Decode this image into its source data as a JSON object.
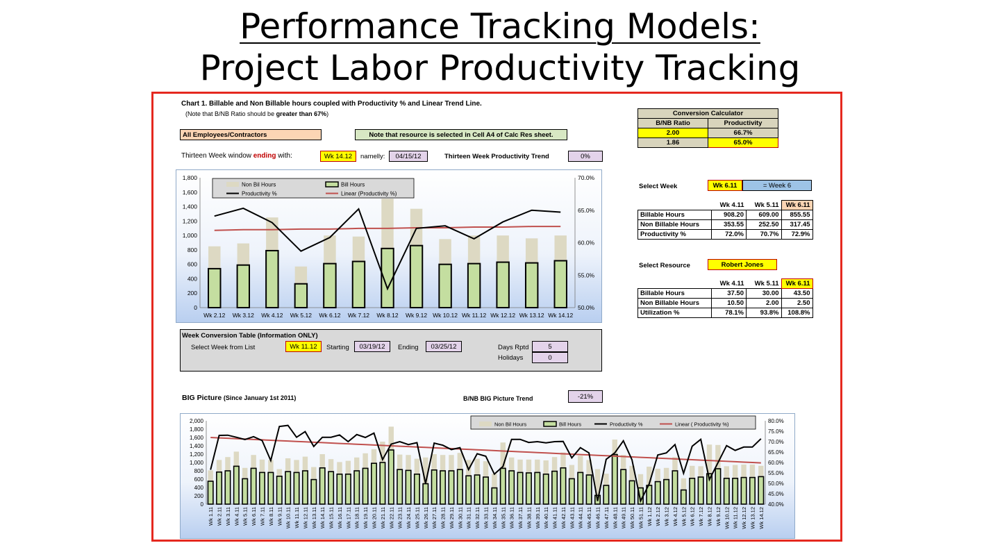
{
  "slide": {
    "title_line1": "Performance Tracking Models:",
    "title_line2": "Project Labor Productivity Tracking"
  },
  "sheet": {
    "chart1_title": "Chart 1.  Billable and Non Billable hours coupled with Productivity % and Linear Trend Line.",
    "chart1_note_prefix": "(Note that B/NB Ratio should be ",
    "chart1_note_bold": "greater than 67%",
    "chart1_note_suffix": ")",
    "employees_box": "All Employees/Contractors",
    "resource_note": "Note that resource is selected in Cell A4 of Calc Res sheet.",
    "window_label_prefix": "Thirteen Week window ",
    "window_label_red": "ending",
    "window_label_suffix": " with:",
    "window_week": "Wk 14.12",
    "namely_label": "namelly:",
    "namely_date": "04/15/12",
    "trend_label": "Thirteen Week Productivity Trend",
    "trend_value": "0%",
    "conversion": {
      "title": "Conversion Calculator",
      "col1": "B/NB Ratio",
      "col2": "Productivity",
      "row1": [
        "2.00",
        "66.7%"
      ],
      "row2": [
        "1.86",
        "65.0%"
      ]
    },
    "select_week": {
      "label": "Select Week",
      "value": "Wk 6.11",
      "equals": "=  Week 6",
      "headers": [
        "Wk 4.11",
        "Wk 5.11",
        "Wk 6.11"
      ],
      "rows": [
        {
          "label": "Billable Hours",
          "values": [
            "908.20",
            "609.00",
            "855.55"
          ]
        },
        {
          "label": "Non Billable Hours",
          "values": [
            "353.55",
            "252.50",
            "317.45"
          ]
        },
        {
          "label": "Productivity %",
          "values": [
            "72.0%",
            "70.7%",
            "72.9%"
          ]
        }
      ]
    },
    "select_resource": {
      "label": "Select Resource",
      "value": "Robert Jones",
      "headers": [
        "Wk 4.11",
        "Wk 5.11",
        "Wk 6.11"
      ],
      "rows": [
        {
          "label": "Billable Hours",
          "values": [
            "37.50",
            "30.00",
            "43.50"
          ]
        },
        {
          "label": "Non Billable Hours",
          "values": [
            "10.50",
            "2.00",
            "2.50"
          ]
        },
        {
          "label": "Utilization %",
          "values": [
            "78.1%",
            "93.8%",
            "108.8%"
          ]
        }
      ]
    },
    "week_conversion": {
      "title": "Week Conversion Table (Information ONLY)",
      "select_label": "Select Week from List",
      "select_value": "Wk 11.12",
      "starting_label": "Starting",
      "starting_value": "03/19/12",
      "ending_label": "Ending",
      "ending_value": "03/25/12",
      "days_label": "Days Rptd",
      "days_value": "5",
      "holidays_label": "Holidays",
      "holidays_value": "0"
    },
    "big_picture": {
      "title": "BIG Picture",
      "subtitle": "(Since January 1st 2011)",
      "trend_label": "B/NB BIG Picture  Trend",
      "trend_value": "-21%"
    }
  },
  "colors": {
    "bill_fill": "#c4dea0",
    "nonbill_fill": "#ddd9c3",
    "productivity_line": "#000000",
    "trend_line": "#c0504d",
    "frame_border": "#e5281f"
  },
  "chart_data": [
    {
      "type": "bar",
      "stacked": true,
      "categories": [
        "Wk 2.12",
        "Wk 3.12",
        "Wk 4.12",
        "Wk 5.12",
        "Wk 6.12",
        "Wk 7.12",
        "Wk 8.12",
        "Wk 9.12",
        "Wk 10.12",
        "Wk 11.12",
        "Wk 12.12",
        "Wk 13.12",
        "Wk 14.12"
      ],
      "series": [
        {
          "name": "Non Bil Hours",
          "values": [
            310,
            300,
            460,
            240,
            390,
            345,
            690,
            510,
            350,
            390,
            370,
            340,
            350
          ]
        },
        {
          "name": "Bill Hours",
          "values": [
            540,
            590,
            790,
            330,
            610,
            640,
            820,
            860,
            600,
            610,
            630,
            620,
            650
          ]
        },
        {
          "name": "Productivity %",
          "axis": "right",
          "type": "line",
          "values": [
            64.1,
            65.3,
            63.1,
            58.7,
            60.8,
            65.2,
            52.9,
            62.2,
            62.6,
            60.6,
            63.2,
            65.0,
            64.7
          ]
        },
        {
          "name": "Linear (Productivity %)",
          "axis": "right",
          "type": "line",
          "values": [
            61.9,
            62.0,
            62.0,
            62.1,
            62.1,
            62.2,
            62.2,
            62.3,
            62.3,
            62.4,
            62.4,
            62.5,
            62.5
          ]
        }
      ],
      "ylim": [
        0,
        1800
      ],
      "yticks": [
        "0",
        "200",
        "400",
        "600",
        "800",
        "1,000",
        "1,200",
        "1,400",
        "1,600",
        "1,800"
      ],
      "y2lim": [
        50,
        70
      ],
      "y2ticks": [
        "50.0%",
        "55.0%",
        "60.0%",
        "65.0%",
        "70.0%"
      ],
      "legend": "top-left"
    },
    {
      "type": "bar",
      "stacked": true,
      "categories": [
        "Wk 1.11",
        "Wk 2.11",
        "Wk 3.11",
        "Wk 4.11",
        "Wk 5.11",
        "Wk 6.11",
        "Wk 7.11",
        "Wk 8.11",
        "Wk 9.11",
        "Wk 10.11",
        "Wk 11.11",
        "Wk 12.11",
        "Wk 13.11",
        "Wk 14.11",
        "Wk 15.11",
        "Wk 16.11",
        "Wk 17.11",
        "Wk 18.11",
        "Wk 19.11",
        "Wk 20.11",
        "Wk 21.11",
        "Wk 22.11",
        "Wk 23.11",
        "Wk 24.11",
        "Wk 25.11",
        "Wk 26.11",
        "Wk 27.11",
        "Wk 28.11",
        "Wk 29.11",
        "Wk 30.11",
        "Wk 31.11",
        "Wk 32.11",
        "Wk 33.11",
        "Wk 34.11",
        "Wk 35.11",
        "Wk 36.11",
        "Wk 37.11",
        "Wk 38.11",
        "Wk 39.11",
        "Wk 40.11",
        "Wk 41.11",
        "Wk 42.11",
        "Wk 43.11",
        "Wk 44.11",
        "Wk 45.11",
        "Wk 46.11",
        "Wk 47.11",
        "Wk 48.11",
        "Wk 49.11",
        "Wk 50.11",
        "Wk 51.11",
        "Wk 1.12",
        "Wk 2.12",
        "Wk 3.12",
        "Wk 4.12",
        "Wk 5.12",
        "Wk 6.12",
        "Wk 7.12",
        "Wk 8.12",
        "Wk 9.12",
        "Wk 10.12",
        "Wk 11.12",
        "Wk 12.12",
        "Wk 13.12",
        "Wk 14.12"
      ],
      "series": [
        {
          "name": "Non Bil Hours",
          "values": [
            260,
            290,
            330,
            350,
            260,
            320,
            310,
            300,
            170,
            320,
            300,
            340,
            300,
            330,
            300,
            290,
            320,
            320,
            360,
            340,
            500,
            560,
            360,
            370,
            370,
            630,
            380,
            380,
            380,
            400,
            380,
            390,
            380,
            340,
            620,
            320,
            310,
            320,
            310,
            330,
            340,
            370,
            330,
            400,
            360,
            630,
            280,
            360,
            350,
            360,
            330,
            450,
            310,
            280,
            330,
            280,
            300,
            260,
            700,
            570,
            290,
            320,
            310,
            310,
            260
          ]
        },
        {
          "name": "Bill Hours",
          "values": [
            550,
            770,
            800,
            910,
            610,
            860,
            760,
            760,
            670,
            780,
            760,
            800,
            590,
            870,
            780,
            720,
            720,
            800,
            860,
            980,
            1000,
            1300,
            830,
            810,
            720,
            490,
            820,
            800,
            800,
            830,
            680,
            700,
            650,
            390,
            860,
            800,
            760,
            750,
            760,
            720,
            790,
            870,
            610,
            760,
            700,
            210,
            450,
            1190,
            830,
            560,
            390,
            450,
            540,
            590,
            800,
            340,
            620,
            650,
            730,
            850,
            620,
            620,
            640,
            640,
            660
          ]
        },
        {
          "name": "Productivity %",
          "axis": "right",
          "type": "line",
          "values": [
            56.5,
            73.0,
            73.1,
            72.1,
            71.0,
            72.4,
            70.5,
            60.9,
            77.3,
            77.8,
            72.1,
            74.8,
            67.7,
            72.1,
            72.1,
            73.2,
            70.0,
            73.4,
            72.0,
            74.1,
            61.4,
            68.8,
            70.0,
            68.6,
            69.5,
            49.9,
            69.3,
            68.3,
            66.2,
            67.1,
            56.6,
            64.2,
            63.0,
            54.4,
            58.1,
            71.1,
            71.1,
            69.6,
            70.0,
            69.4,
            70.0,
            70.1,
            62.2,
            67.1,
            64.6,
            41.5,
            61.5,
            64.6,
            70.4,
            61.3,
            41.5,
            49.7,
            63.6,
            64.6,
            68.6,
            54.8,
            67.8,
            71.1,
            51.8,
            59.9,
            68.1,
            65.8,
            67.4,
            67.4,
            71.4
          ]
        },
        {
          "name": "Linear ( Productivity %)",
          "axis": "right",
          "type": "line",
          "start": 72.0,
          "end": 59.8
        }
      ],
      "ylim": [
        0,
        2000
      ],
      "yticks": [
        "0",
        "200",
        "400",
        "600",
        "800",
        "1,000",
        "1,200",
        "1,400",
        "1,600",
        "1,800",
        "2,000"
      ],
      "y2lim": [
        40,
        80
      ],
      "y2ticks": [
        "40.0%",
        "45.0%",
        "50.0%",
        "55.0%",
        "60.0%",
        "65.0%",
        "70.0%",
        "75.0%",
        "80.0%"
      ],
      "legend": "top-right"
    }
  ]
}
